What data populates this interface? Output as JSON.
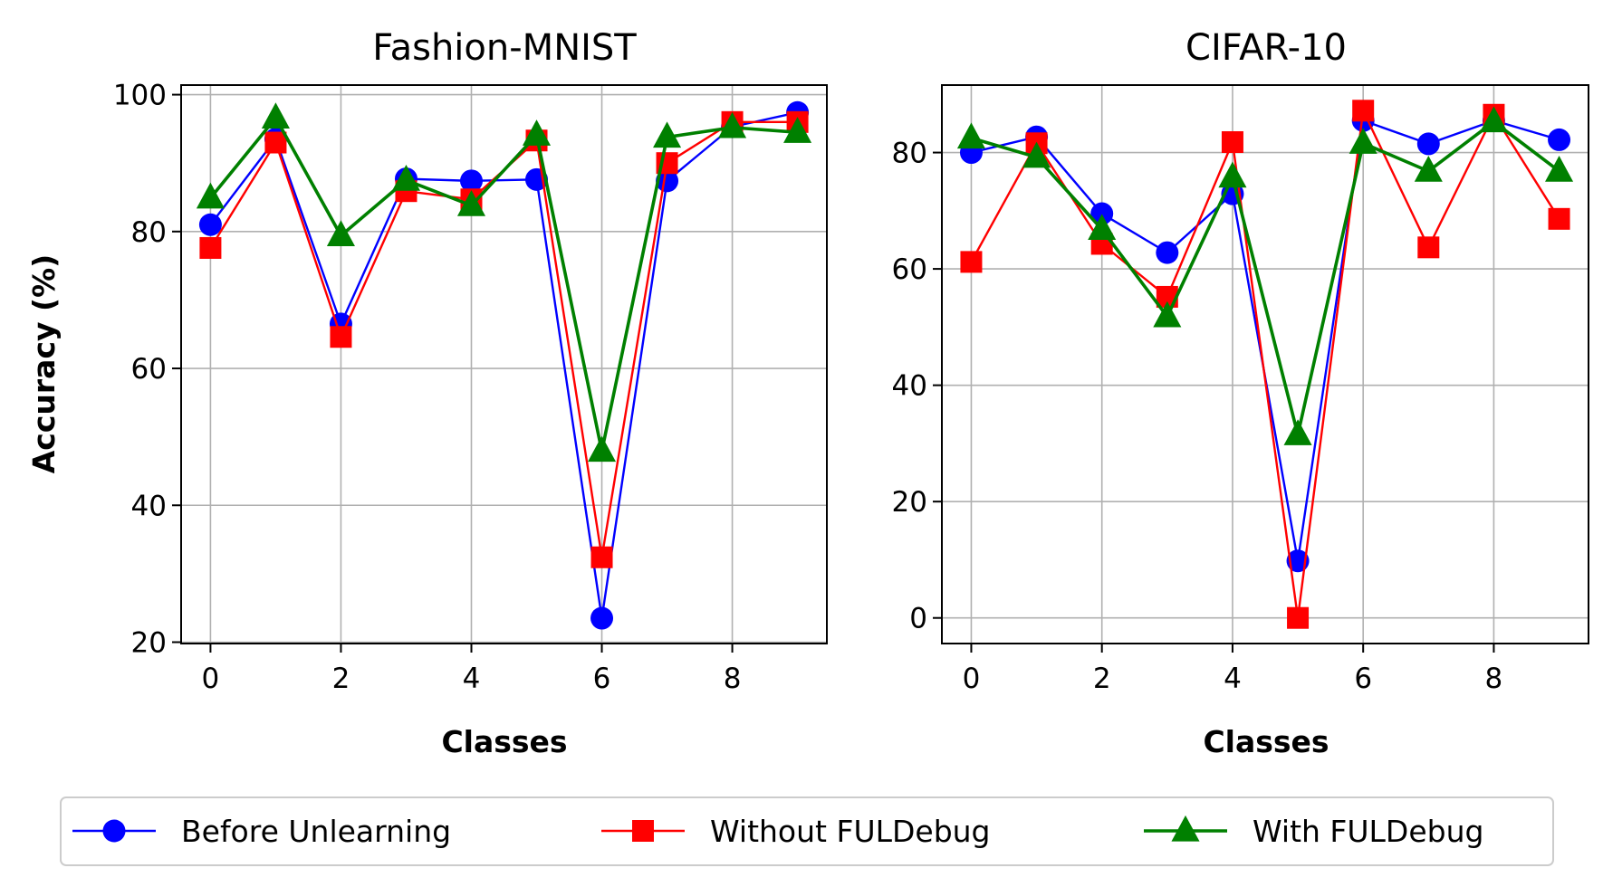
{
  "figure": {
    "ylabel": "Accuracy (%)",
    "legend_position": "bottom-center"
  },
  "legend": [
    {
      "name": "Before Unlearning",
      "color": "#0000ff",
      "marker": "circle"
    },
    {
      "name": "Without FULDebug",
      "color": "#ff0000",
      "marker": "square"
    },
    {
      "name": "With FULDebug",
      "color": "#008000",
      "marker": "triangle"
    }
  ],
  "chart_data": [
    {
      "type": "line",
      "title": "Fashion-MNIST",
      "xlabel": "Classes",
      "ylabel": "Accuracy (%)",
      "x": [
        0,
        1,
        2,
        3,
        4,
        5,
        6,
        7,
        8,
        9
      ],
      "xlim": [
        -0.45,
        9.45
      ],
      "ylim": [
        19.8,
        101.4
      ],
      "xticks": [
        0,
        2,
        4,
        6,
        8
      ],
      "yticks": [
        20,
        40,
        60,
        80,
        100
      ],
      "grid": true,
      "series": [
        {
          "name": "Before Unlearning",
          "color": "#0000ff",
          "marker": "circle",
          "values": [
            81.0,
            93.5,
            66.5,
            87.7,
            87.4,
            87.6,
            23.5,
            87.4,
            95.3,
            97.4
          ]
        },
        {
          "name": "Without FULDebug",
          "color": "#ff0000",
          "marker": "square",
          "values": [
            77.6,
            93.0,
            64.6,
            85.9,
            84.7,
            93.3,
            32.4,
            90.0,
            96.0,
            96.0
          ]
        },
        {
          "name": "With FULDebug",
          "color": "#008000",
          "marker": "triangle",
          "values": [
            84.9,
            96.6,
            79.4,
            87.5,
            83.8,
            94.1,
            47.9,
            93.8,
            95.2,
            94.5
          ]
        }
      ]
    },
    {
      "type": "line",
      "title": "CIFAR-10",
      "xlabel": "Classes",
      "ylabel": "",
      "x": [
        0,
        1,
        2,
        3,
        4,
        5,
        6,
        7,
        8,
        9
      ],
      "xlim": [
        -0.45,
        9.45
      ],
      "ylim": [
        -4.4,
        91.6
      ],
      "xticks": [
        0,
        2,
        4,
        6,
        8
      ],
      "yticks": [
        0,
        20,
        40,
        60,
        80
      ],
      "grid": true,
      "series": [
        {
          "name": "Before Unlearning",
          "color": "#0000ff",
          "marker": "circle",
          "values": [
            80.0,
            82.7,
            69.5,
            62.8,
            72.9,
            9.8,
            85.5,
            81.5,
            85.5,
            82.2
          ]
        },
        {
          "name": "Without FULDebug",
          "color": "#ff0000",
          "marker": "square",
          "values": [
            61.2,
            81.6,
            64.3,
            55.2,
            81.8,
            0.0,
            87.2,
            63.7,
            86.5,
            68.6
          ]
        },
        {
          "name": "With FULDebug",
          "color": "#008000",
          "marker": "triangle",
          "values": [
            82.5,
            79.2,
            66.8,
            51.8,
            75.8,
            31.5,
            81.6,
            76.8,
            85.3,
            76.8
          ]
        }
      ]
    }
  ]
}
